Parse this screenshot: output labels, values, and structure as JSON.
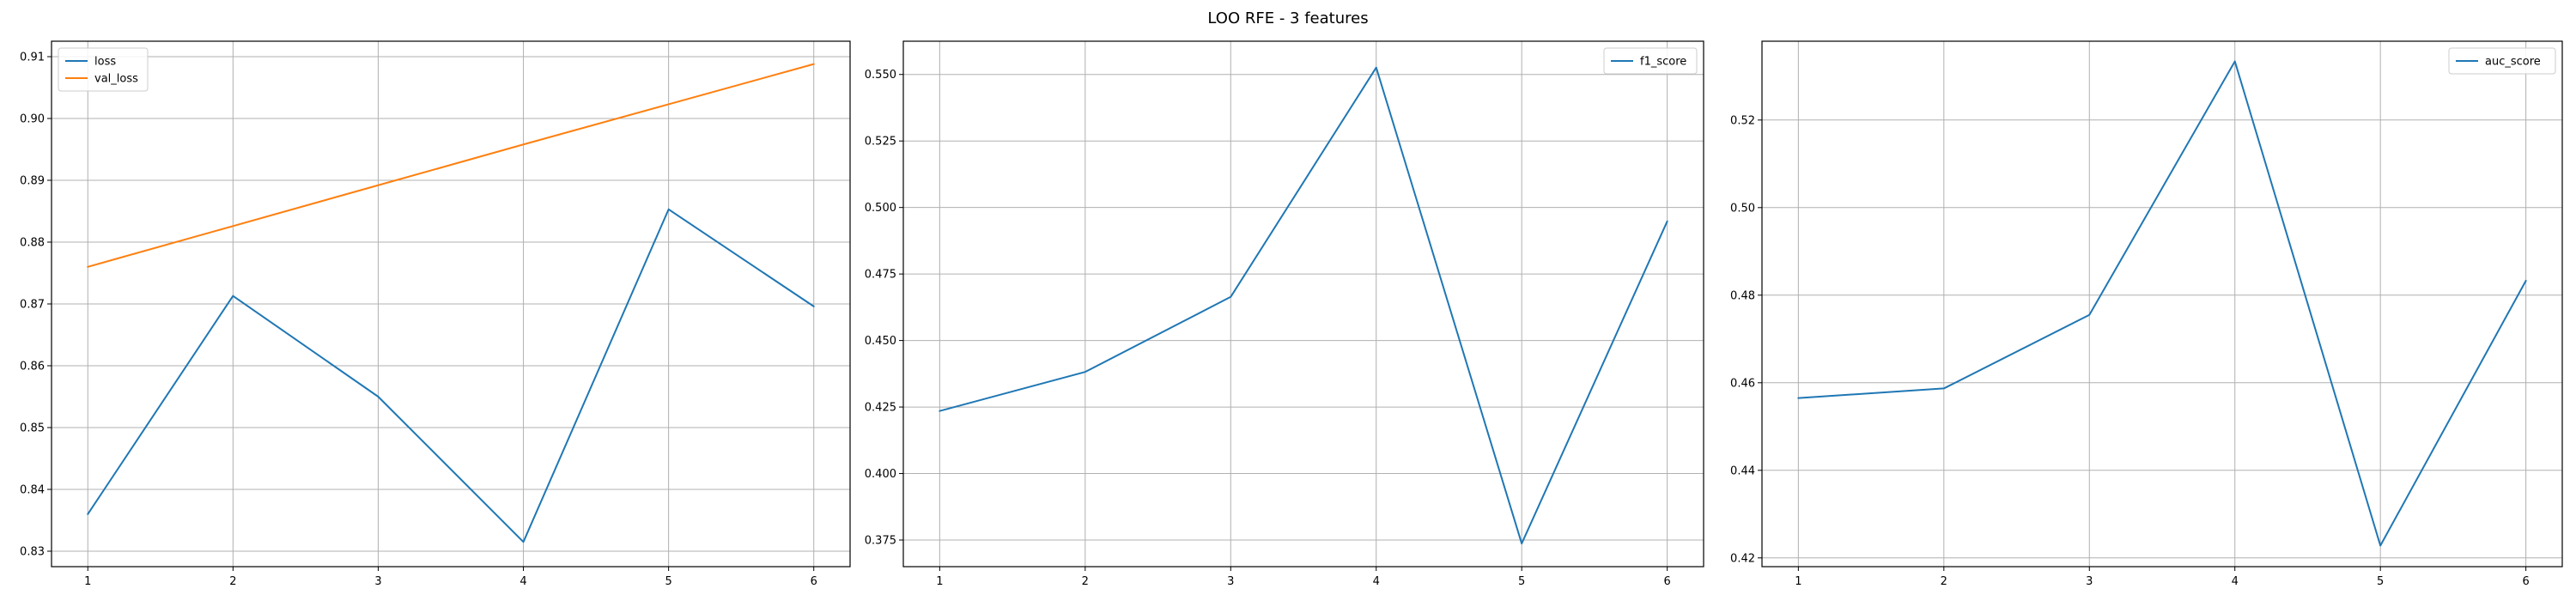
{
  "figure": {
    "title": "LOO RFE - 3 features"
  },
  "chart_data": [
    {
      "type": "line",
      "title": "",
      "xlabel": "",
      "ylabel": "",
      "x": [
        1,
        2,
        3,
        4,
        5,
        6
      ],
      "xticks": [
        1,
        2,
        3,
        4,
        5,
        6
      ],
      "xlim": [
        0.75,
        6.25
      ],
      "ylim": [
        0.8275,
        0.9125
      ],
      "yticks": [
        0.83,
        0.84,
        0.85,
        0.86,
        0.87,
        0.88,
        0.89,
        0.9,
        0.91
      ],
      "ytick_decimals": 2,
      "grid": true,
      "legend_position": "top-left",
      "series": [
        {
          "name": "loss",
          "color": "#1f77b4",
          "values": [
            0.836,
            0.8713,
            0.855,
            0.8315,
            0.8853,
            0.8696
          ]
        },
        {
          "name": "val_loss",
          "color": "#ff7f0e",
          "values": [
            0.876,
            0.8826,
            0.8892,
            0.8958,
            0.9023,
            0.9088
          ]
        }
      ]
    },
    {
      "type": "line",
      "title": "",
      "xlabel": "",
      "ylabel": "",
      "x": [
        1,
        2,
        3,
        4,
        5,
        6
      ],
      "xticks": [
        1,
        2,
        3,
        4,
        5,
        6
      ],
      "xlim": [
        0.75,
        6.25
      ],
      "ylim": [
        0.365,
        0.5625
      ],
      "yticks": [
        0.375,
        0.4,
        0.425,
        0.45,
        0.475,
        0.5,
        0.525,
        0.55
      ],
      "ytick_decimals": 3,
      "grid": true,
      "legend_position": "top-right",
      "series": [
        {
          "name": "f1_score",
          "color": "#1f77b4",
          "values": [
            0.4235,
            0.4382,
            0.4664,
            0.5526,
            0.3737,
            0.4948
          ]
        }
      ]
    },
    {
      "type": "line",
      "title": "",
      "xlabel": "",
      "ylabel": "",
      "x": [
        1,
        2,
        3,
        4,
        5,
        6
      ],
      "xticks": [
        1,
        2,
        3,
        4,
        5,
        6
      ],
      "xlim": [
        0.75,
        6.25
      ],
      "ylim": [
        0.418,
        0.538
      ],
      "yticks": [
        0.42,
        0.44,
        0.46,
        0.48,
        0.5,
        0.52
      ],
      "ytick_decimals": 2,
      "grid": true,
      "legend_position": "top-right",
      "series": [
        {
          "name": "auc_score",
          "color": "#1f77b4",
          "values": [
            0.4565,
            0.4587,
            0.4755,
            0.5334,
            0.4228,
            0.4833
          ]
        }
      ]
    }
  ]
}
